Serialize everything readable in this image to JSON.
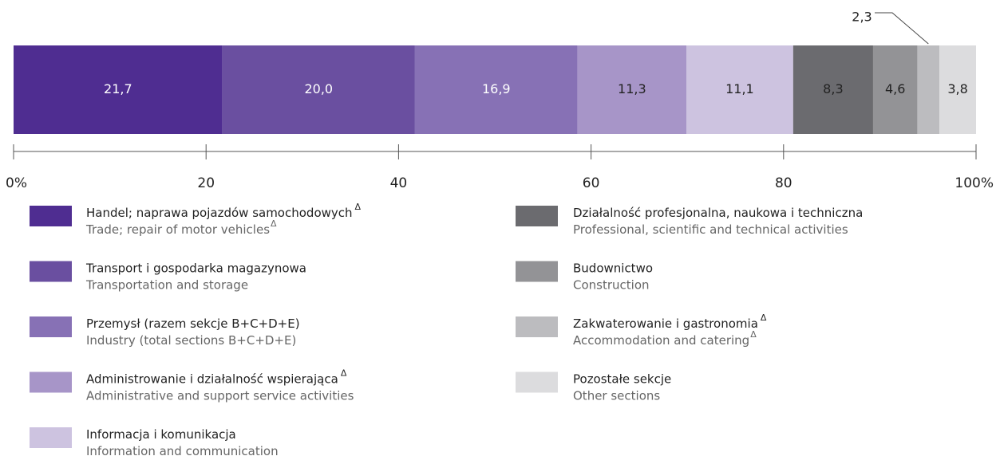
{
  "chart_data": {
    "type": "stacked-bar",
    "xlim": [
      0,
      100
    ],
    "xticks": [
      {
        "value": 0,
        "label": "0%"
      },
      20,
      40,
      60,
      80,
      {
        "value": 100,
        "label": "100%"
      }
    ],
    "series": [
      {
        "name": "Handel; naprawa pojazdów samochodowych",
        "name_mark": "Δ",
        "name_en": "Trade; repair of motor vehicles",
        "name_en_mark": "Δ",
        "color": "#4f2d91",
        "values": [
          21.7
        ],
        "value_labels": [
          "21,7"
        ]
      },
      {
        "name": "Transport i gospodarka magazynowa",
        "name_en": "Transportation and storage",
        "color": "#6a4fa0",
        "values": [
          20.0
        ],
        "value_labels": [
          "20,0"
        ]
      },
      {
        "name": "Przemysł (razem sekcje B+C+D+E)",
        "name_en": "Industry (total sections B+C+D+E)",
        "color": "#8771b5",
        "values": [
          16.9
        ],
        "value_labels": [
          "16,9"
        ]
      },
      {
        "name": "Administrowanie i działalność wspierająca",
        "name_mark": "Δ",
        "name_en": "Administrative and support service activities",
        "color": "#a795c8",
        "values": [
          11.3
        ],
        "value_labels": [
          "11,3"
        ]
      },
      {
        "name": "Informacja i komunikacja",
        "name_en": "Information and communication",
        "color": "#cdc3e0",
        "values": [
          11.1
        ],
        "value_labels": [
          "11,1"
        ]
      },
      {
        "name": "Działalność profesjonalna, naukowa i techniczna",
        "name_en": "Professional, scientific and technical activities",
        "color": "#6b6b6f",
        "values": [
          8.3
        ],
        "value_labels": [
          "8,3"
        ]
      },
      {
        "name": "Budownictwo",
        "name_en": "Construction",
        "color": "#939396",
        "values": [
          4.6
        ],
        "value_labels": [
          "4,6"
        ]
      },
      {
        "name": "Zakwaterowanie i gastronomia",
        "name_mark": "Δ",
        "name_en": "Accommodation and catering",
        "name_en_mark": "Δ",
        "color": "#bcbcbf",
        "values": [
          2.3
        ],
        "value_labels": [
          "2,3"
        ]
      },
      {
        "name": "Pozostałe sekcje",
        "name_en": "Other sections",
        "color": "#dcdcde",
        "values": [
          3.8
        ],
        "value_labels": [
          "3,8"
        ]
      }
    ]
  }
}
